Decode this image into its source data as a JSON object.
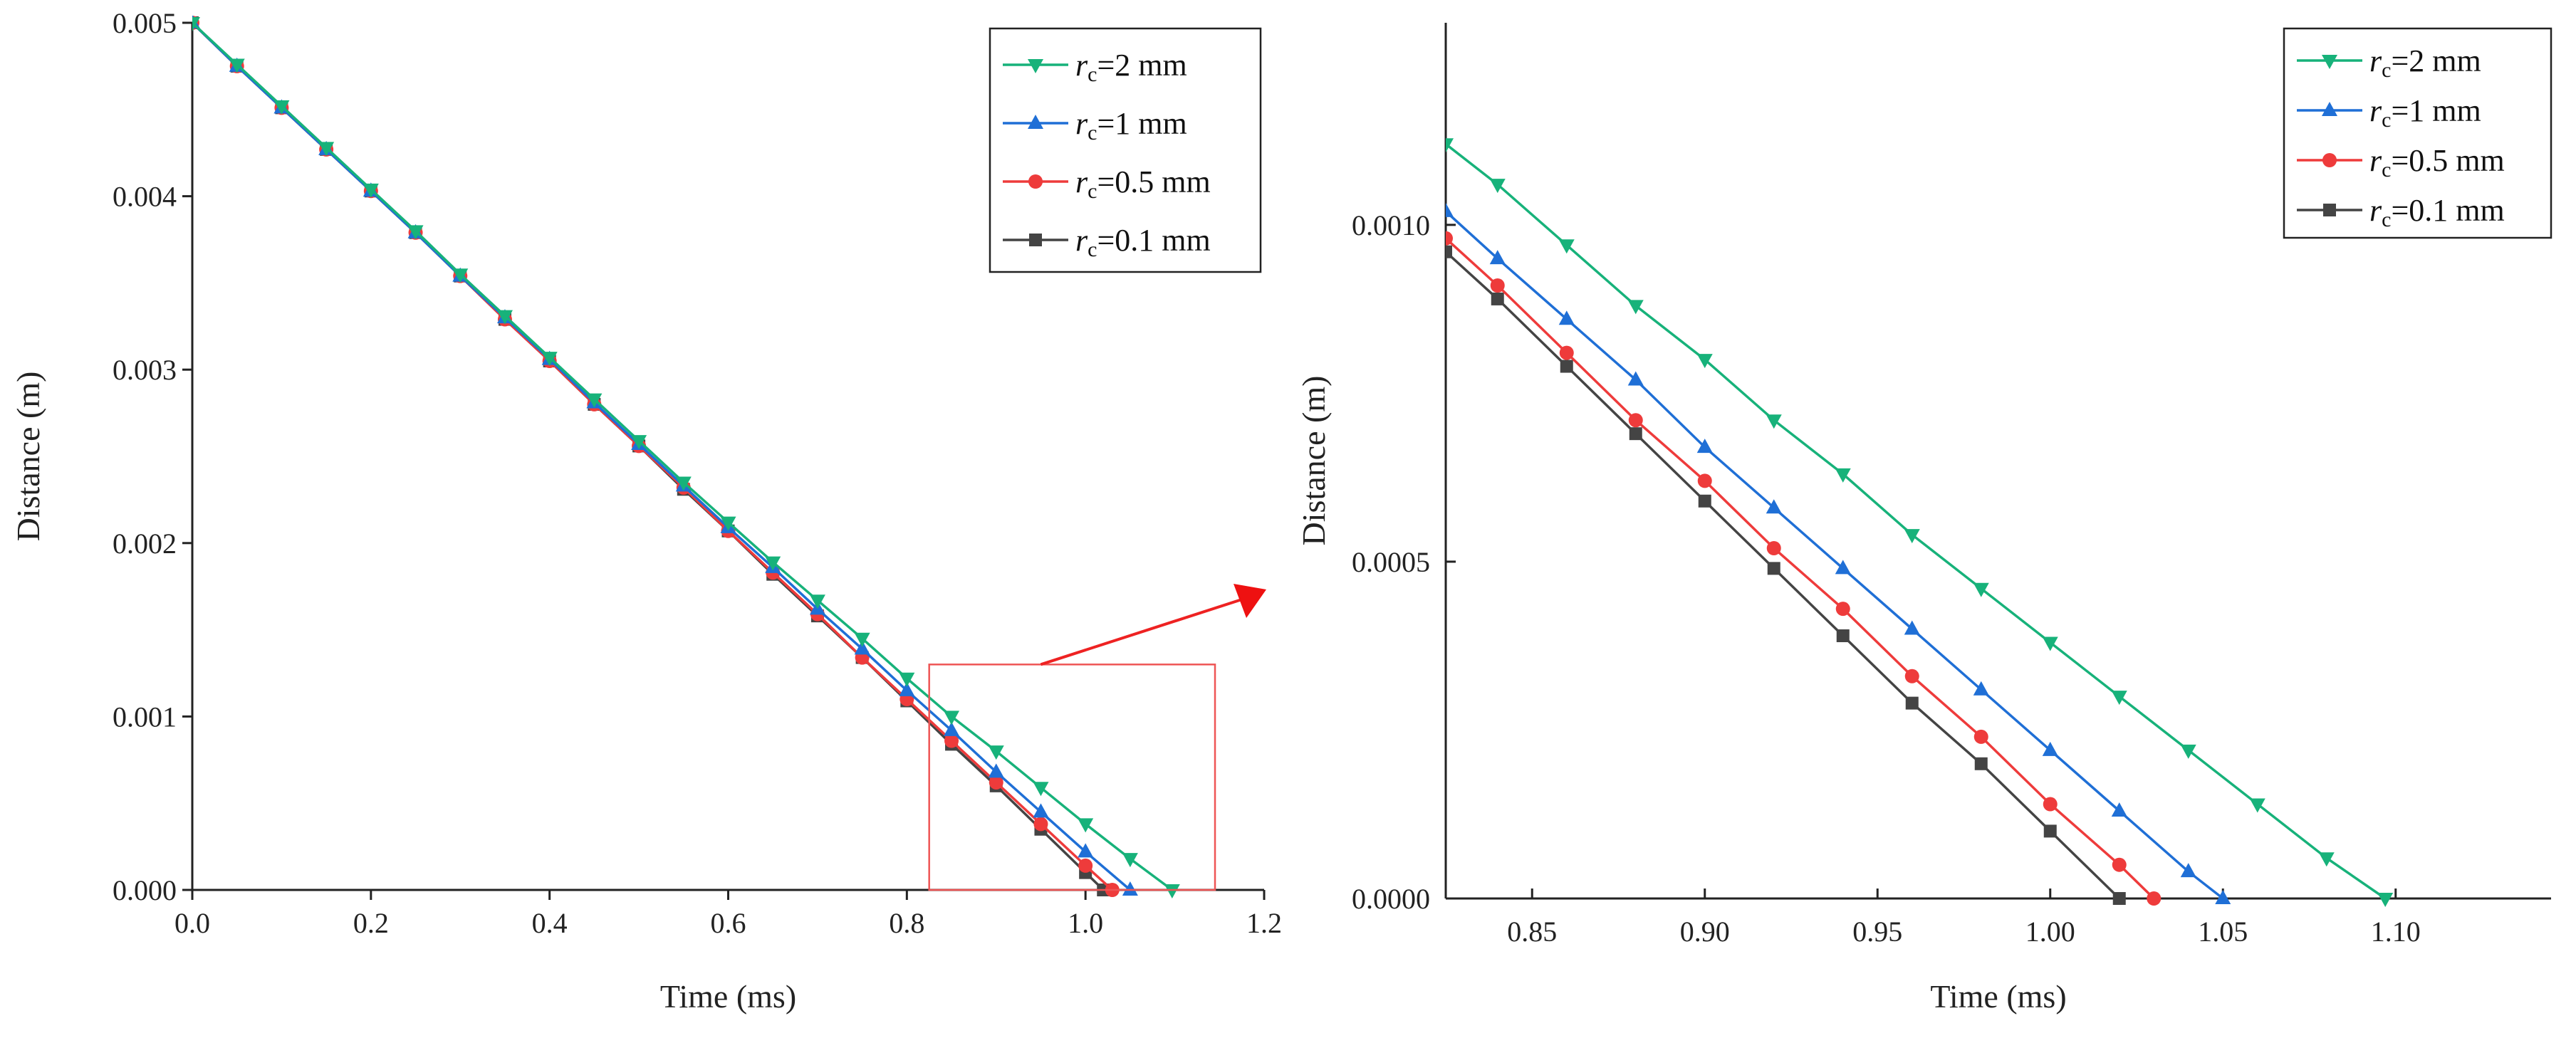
{
  "chart_data": [
    {
      "type": "line",
      "panel": "main",
      "xlabel": "Time (ms)",
      "ylabel": "Distance (m)",
      "xlim": [
        0.0,
        1.2
      ],
      "ylim": [
        0.0,
        0.005
      ],
      "x_ticks": [
        "0.0",
        "0.2",
        "0.4",
        "0.6",
        "0.8",
        "1.0",
        "1.2"
      ],
      "y_ticks": [
        "0.000",
        "0.001",
        "0.002",
        "0.003",
        "0.004",
        "0.005"
      ],
      "legend_position": "top-right",
      "zoom_box": {
        "x": [
          0.825,
          1.145
        ],
        "y": [
          0.0,
          0.0013
        ]
      },
      "series": [
        {
          "name": "rc=2 mm",
          "symbol": "r",
          "subscript": "c",
          "label_rest": "=2 mm",
          "color": "#17b27a",
          "marker": "triangle-down",
          "x": [
            0,
            0.05,
            0.1,
            0.15,
            0.2,
            0.25,
            0.3,
            0.35,
            0.4,
            0.45,
            0.5,
            0.55,
            0.6,
            0.65,
            0.7,
            0.75,
            0.8,
            0.85,
            0.9,
            0.95,
            1.0,
            1.05,
            1.097
          ],
          "y": [
            0.005,
            0.00476,
            0.00452,
            0.00428,
            0.00404,
            0.0038,
            0.00355,
            0.00331,
            0.00307,
            0.00283,
            0.00259,
            0.00235,
            0.00212,
            0.00189,
            0.00167,
            0.00145,
            0.00122,
            0.001,
            0.0008,
            0.00059,
            0.00038,
            0.00018,
            0
          ]
        },
        {
          "name": "rc=1 mm",
          "symbol": "r",
          "subscript": "c",
          "label_rest": "=1 mm",
          "color": "#1f6fd6",
          "marker": "triangle-up",
          "x": [
            0,
            0.05,
            0.1,
            0.15,
            0.2,
            0.25,
            0.3,
            0.35,
            0.4,
            0.45,
            0.5,
            0.55,
            0.6,
            0.65,
            0.7,
            0.75,
            0.8,
            0.85,
            0.9,
            0.95,
            1.0,
            1.05
          ],
          "y": [
            0.005,
            0.00475,
            0.00451,
            0.00427,
            0.00403,
            0.00379,
            0.00354,
            0.0033,
            0.00306,
            0.00281,
            0.00257,
            0.00233,
            0.00209,
            0.00186,
            0.00162,
            0.00139,
            0.00115,
            0.00092,
            0.00068,
            0.00045,
            0.00022,
            0
          ]
        },
        {
          "name": "rc=0.5 mm",
          "symbol": "r",
          "subscript": "c",
          "label_rest": "=0.5 mm",
          "color": "#ee3b3b",
          "marker": "circle",
          "x": [
            0,
            0.05,
            0.1,
            0.15,
            0.2,
            0.25,
            0.3,
            0.35,
            0.4,
            0.45,
            0.5,
            0.55,
            0.6,
            0.65,
            0.7,
            0.75,
            0.8,
            0.85,
            0.9,
            0.95,
            1.0,
            1.03
          ],
          "y": [
            0.005,
            0.00475,
            0.00451,
            0.00427,
            0.00403,
            0.00379,
            0.00354,
            0.00329,
            0.00305,
            0.0028,
            0.00256,
            0.00232,
            0.00207,
            0.00183,
            0.00159,
            0.00134,
            0.0011,
            0.00086,
            0.00062,
            0.00038,
            0.00014,
            0
          ]
        },
        {
          "name": "rc=0.1 mm",
          "symbol": "r",
          "subscript": "c",
          "label_rest": "=0.1 mm",
          "color": "#444444",
          "marker": "square",
          "x": [
            0,
            0.05,
            0.1,
            0.15,
            0.2,
            0.25,
            0.3,
            0.35,
            0.4,
            0.45,
            0.5,
            0.55,
            0.6,
            0.65,
            0.7,
            0.75,
            0.8,
            0.85,
            0.9,
            0.95,
            1.0,
            1.02
          ],
          "y": [
            0.005,
            0.00475,
            0.00451,
            0.00427,
            0.00403,
            0.00379,
            0.00354,
            0.00329,
            0.00305,
            0.0028,
            0.00256,
            0.00231,
            0.00207,
            0.00182,
            0.00158,
            0.00134,
            0.00109,
            0.00084,
            0.0006,
            0.00035,
            0.0001,
            0
          ]
        }
      ]
    },
    {
      "type": "line",
      "panel": "zoom",
      "xlabel": "Time (ms)",
      "ylabel": "Distance (m)",
      "xlim": [
        0.825,
        1.145
      ],
      "ylim": [
        0.0,
        0.0013
      ],
      "x_ticks": [
        "0.85",
        "0.90",
        "0.95",
        "1.00",
        "1.05",
        "1.10"
      ],
      "y_ticks": [
        "0.0000",
        "0.0005",
        "0.0010"
      ],
      "legend_position": "top-right",
      "series": [
        {
          "name": "rc=2 mm",
          "symbol": "r",
          "subscript": "c",
          "label_rest": "=2 mm",
          "color": "#17b27a",
          "marker": "triangle-down",
          "x": [
            0.825,
            0.84,
            0.86,
            0.88,
            0.9,
            0.92,
            0.94,
            0.96,
            0.98,
            1.0,
            1.02,
            1.04,
            1.06,
            1.08,
            1.097
          ],
          "y": [
            0.00112,
            0.00106,
            0.00097,
            0.00088,
            0.0008,
            0.00071,
            0.00063,
            0.00054,
            0.00046,
            0.00038,
            0.0003,
            0.00022,
            0.00014,
            6e-05,
            0
          ]
        },
        {
          "name": "rc=1 mm",
          "symbol": "r",
          "subscript": "c",
          "label_rest": "=1 mm",
          "color": "#1f6fd6",
          "marker": "triangle-up",
          "x": [
            0.825,
            0.84,
            0.86,
            0.88,
            0.9,
            0.92,
            0.94,
            0.96,
            0.98,
            1.0,
            1.02,
            1.04,
            1.05
          ],
          "y": [
            0.00102,
            0.00095,
            0.00086,
            0.00077,
            0.00067,
            0.00058,
            0.00049,
            0.0004,
            0.00031,
            0.00022,
            0.00013,
            4e-05,
            0
          ]
        },
        {
          "name": "rc=0.5 mm",
          "symbol": "r",
          "subscript": "c",
          "label_rest": "=0.5 mm",
          "color": "#ee3b3b",
          "marker": "circle",
          "x": [
            0.825,
            0.84,
            0.86,
            0.88,
            0.9,
            0.92,
            0.94,
            0.96,
            0.98,
            1.0,
            1.02,
            1.03
          ],
          "y": [
            0.00098,
            0.00091,
            0.00081,
            0.00071,
            0.00062,
            0.00052,
            0.00043,
            0.00033,
            0.00024,
            0.00014,
            5e-05,
            0
          ]
        },
        {
          "name": "rc=0.1 mm",
          "symbol": "r",
          "subscript": "c",
          "label_rest": "=0.1 mm",
          "color": "#444444",
          "marker": "square",
          "x": [
            0.825,
            0.84,
            0.86,
            0.88,
            0.9,
            0.92,
            0.94,
            0.96,
            0.98,
            1.0,
            1.02
          ],
          "y": [
            0.00096,
            0.00089,
            0.00079,
            0.00069,
            0.00059,
            0.00049,
            0.00039,
            0.00029,
            0.0002,
            0.0001,
            0
          ]
        }
      ]
    }
  ]
}
